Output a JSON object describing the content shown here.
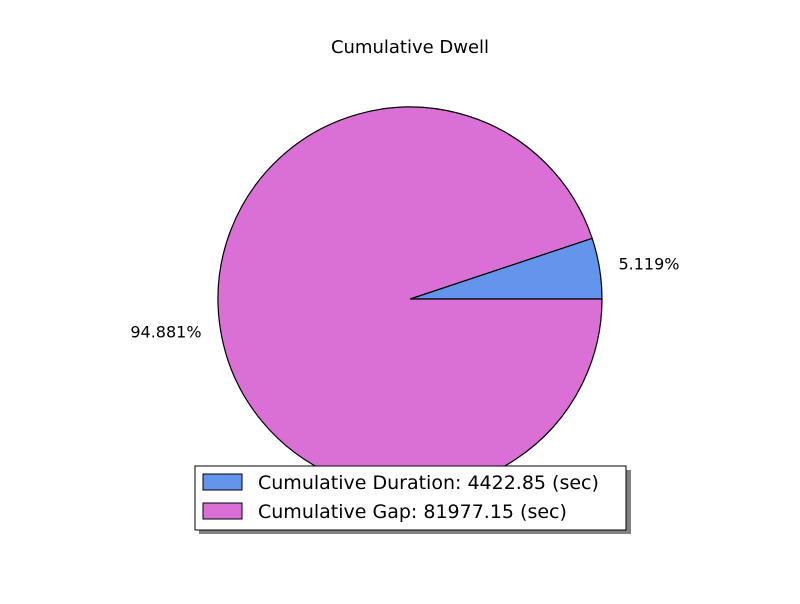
{
  "chart_data": {
    "type": "pie",
    "title": "Cumulative Dwell",
    "slices": [
      {
        "label": "Cumulative Duration: 4422.85 (sec)",
        "value": 4422.85,
        "pct_label": "5.119%",
        "color": "#6495ED"
      },
      {
        "label": "Cumulative Gap: 81977.15 (sec)",
        "value": 81977.15,
        "pct_label": "94.881%",
        "color": "#DA70D6"
      }
    ],
    "legend_position": "bottom-center",
    "edge_color": "#000000"
  }
}
